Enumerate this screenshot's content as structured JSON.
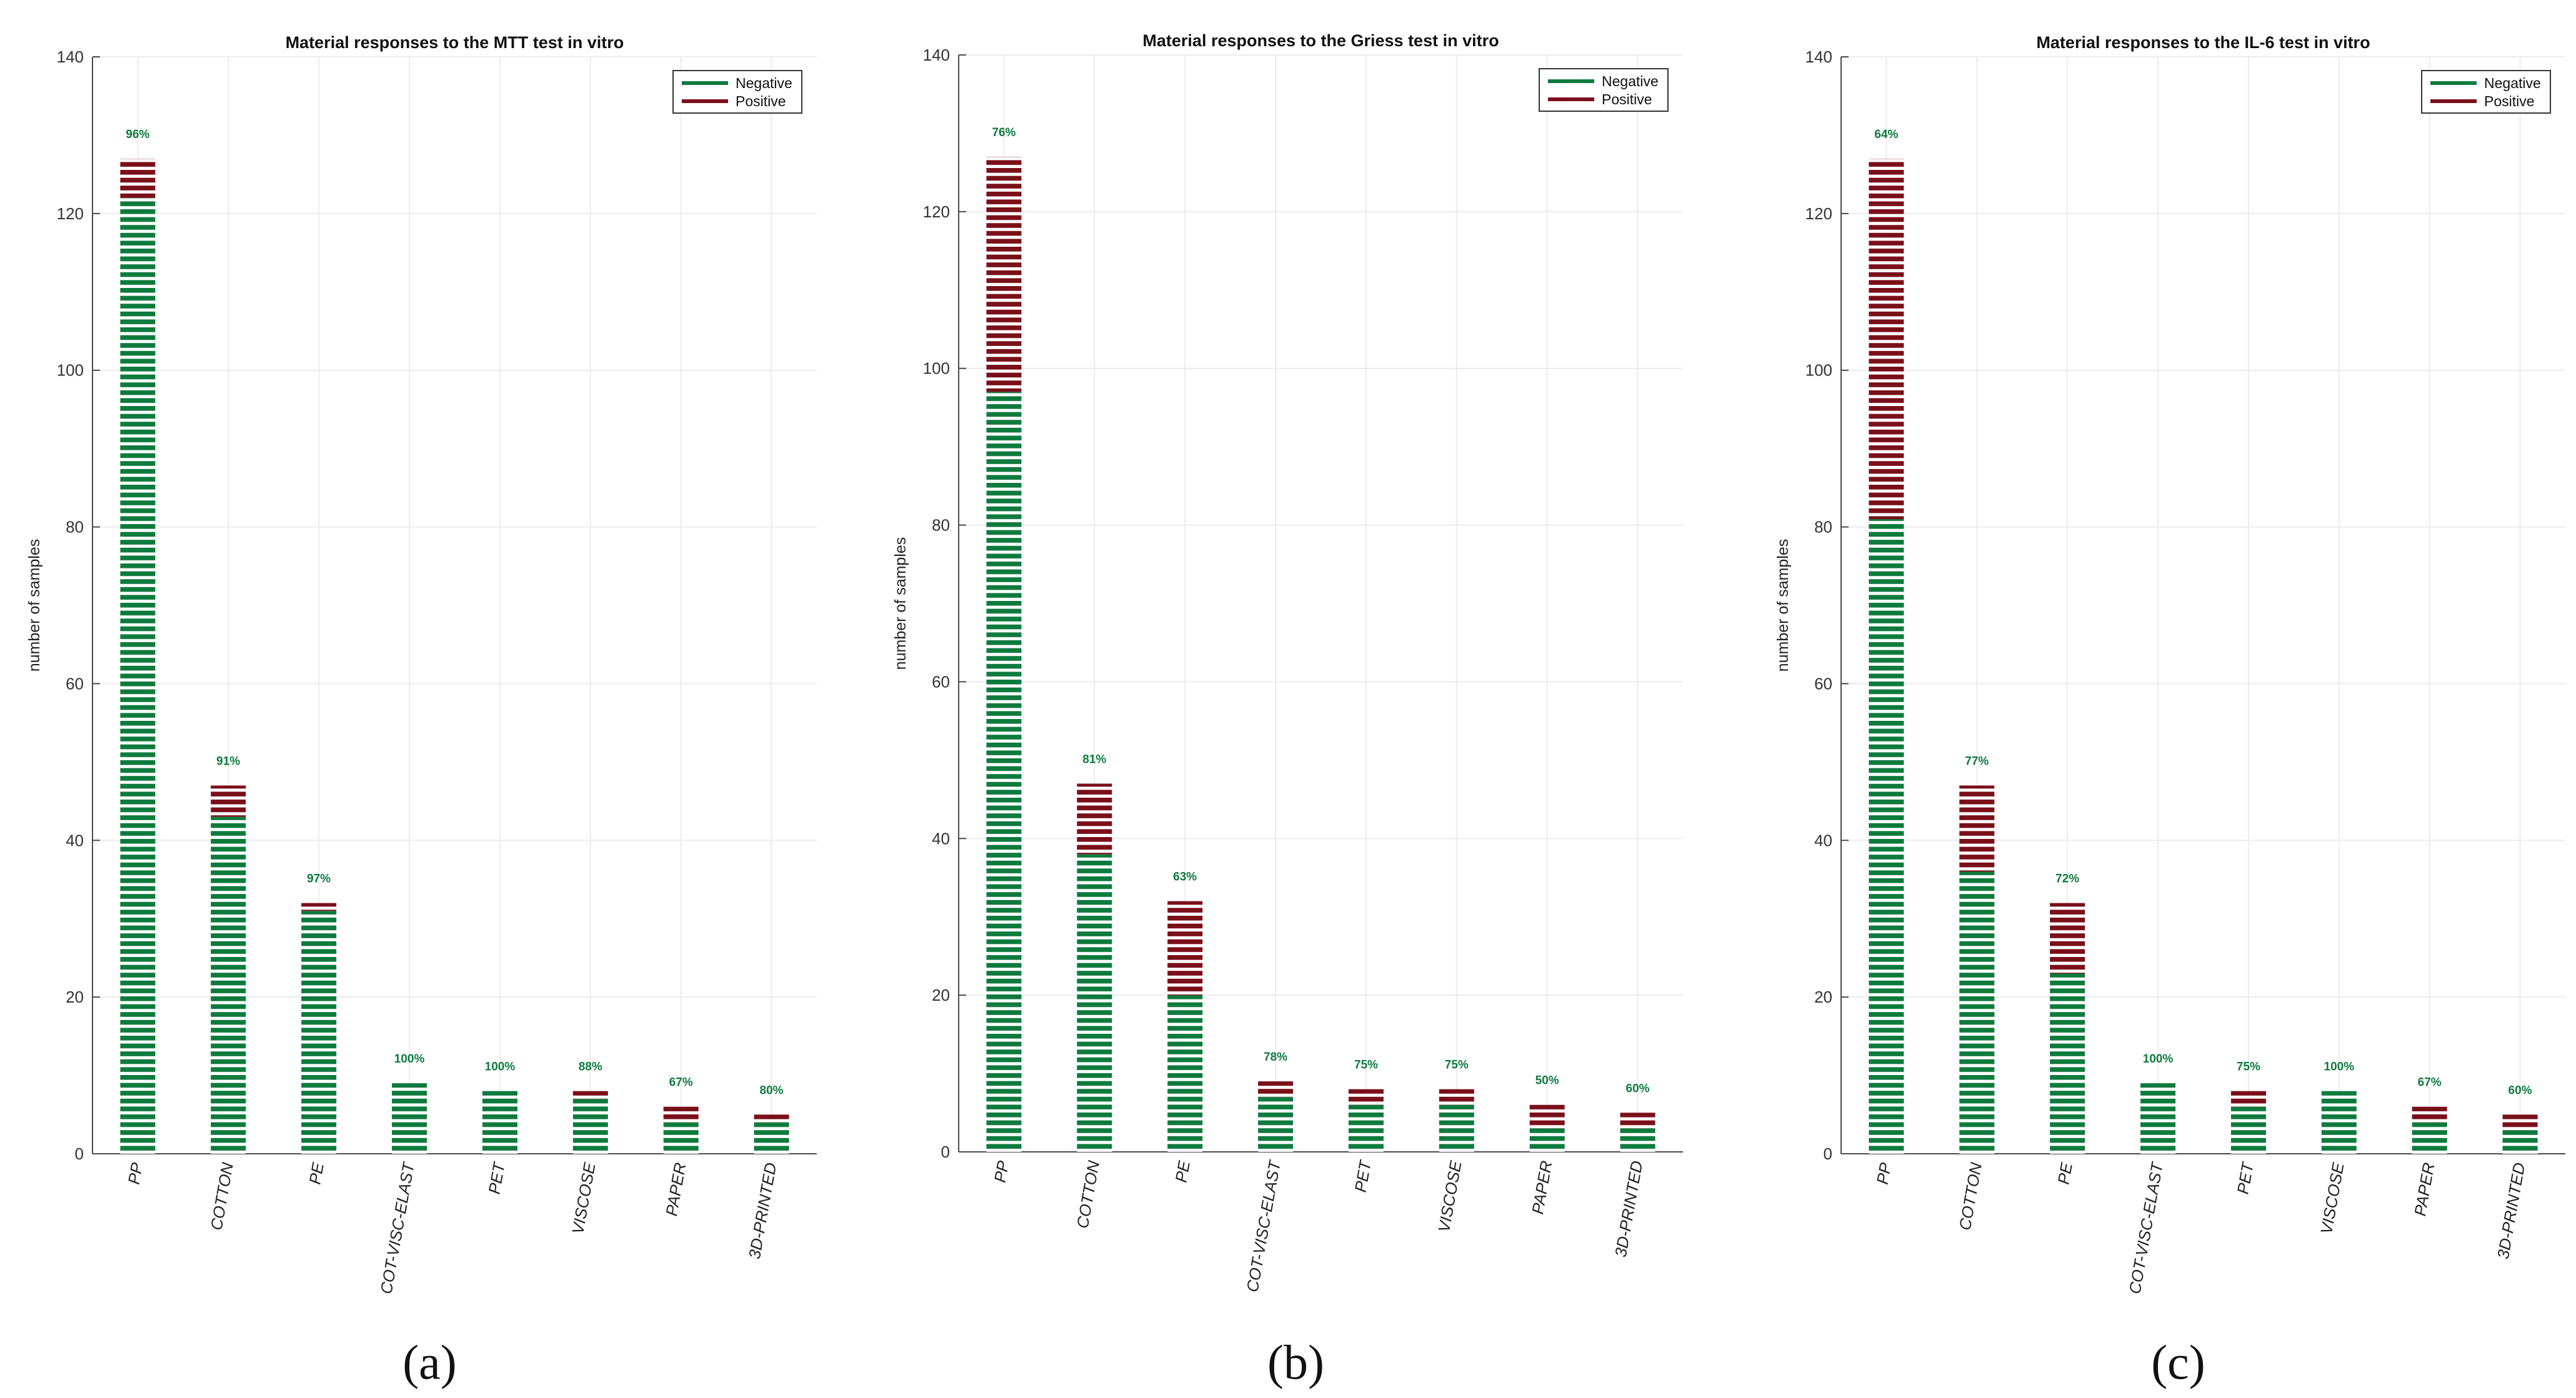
{
  "colors": {
    "negative": "#0e7a3e",
    "positive": "#7a0f1a"
  },
  "chart_data": [
    {
      "type": "bar",
      "stacked": true,
      "title": "Material responses to the MTT test in vitro",
      "ylabel": "number of samples",
      "xlabel": "",
      "ylim": [
        0,
        140
      ],
      "yticks": [
        0,
        20,
        40,
        60,
        80,
        100,
        120,
        140
      ],
      "grid": true,
      "legend_position": "top-right",
      "caption": "(a)",
      "categories": [
        "PP",
        "COTTON",
        "PE",
        "COT-VISC-ELAST",
        "PET",
        "VISCOSE",
        "PAPER",
        "3D-PRINTED"
      ],
      "series": [
        {
          "name": "Negative",
          "values": [
            122,
            43,
            31,
            9,
            8,
            7,
            4,
            4
          ]
        },
        {
          "name": "Positive",
          "values": [
            5,
            4,
            1,
            0,
            0,
            1,
            2,
            1
          ]
        }
      ],
      "labels": [
        "96%",
        "91%",
        "97%",
        "100%",
        "100%",
        "88%",
        "67%",
        "80%"
      ]
    },
    {
      "type": "bar",
      "stacked": true,
      "title": "Material responses to the Griess test in vitro",
      "ylabel": "number of samples",
      "xlabel": "",
      "ylim": [
        0,
        140
      ],
      "yticks": [
        0,
        20,
        40,
        60,
        80,
        100,
        120,
        140
      ],
      "grid": true,
      "legend_position": "top-right",
      "caption": "(b)",
      "categories": [
        "PP",
        "COTTON",
        "PE",
        "COT-VISC-ELAST",
        "PET",
        "VISCOSE",
        "PAPER",
        "3D-PRINTED"
      ],
      "series": [
        {
          "name": "Negative",
          "values": [
            97,
            38,
            20,
            7,
            6,
            6,
            3,
            3
          ]
        },
        {
          "name": "Positive",
          "values": [
            30,
            9,
            12,
            2,
            2,
            2,
            3,
            2
          ]
        }
      ],
      "labels": [
        "76%",
        "81%",
        "63%",
        "78%",
        "75%",
        "75%",
        "50%",
        "60%"
      ]
    },
    {
      "type": "bar",
      "stacked": true,
      "title": "Material responses to the IL-6 test in vitro",
      "ylabel": "number of samples",
      "xlabel": "",
      "ylim": [
        0,
        140
      ],
      "yticks": [
        0,
        20,
        40,
        60,
        80,
        100,
        120,
        140
      ],
      "grid": true,
      "legend_position": "top-right",
      "caption": "(c)",
      "categories": [
        "PP",
        "COTTON",
        "PE",
        "COT-VISC-ELAST",
        "PET",
        "VISCOSE",
        "PAPER",
        "3D-PRINTED"
      ],
      "series": [
        {
          "name": "Negative",
          "values": [
            81,
            36,
            23,
            9,
            6,
            8,
            4,
            3
          ]
        },
        {
          "name": "Positive",
          "values": [
            46,
            11,
            9,
            0,
            2,
            0,
            2,
            2
          ]
        }
      ],
      "labels": [
        "64%",
        "77%",
        "72%",
        "100%",
        "75%",
        "100%",
        "67%",
        "60%"
      ]
    }
  ]
}
